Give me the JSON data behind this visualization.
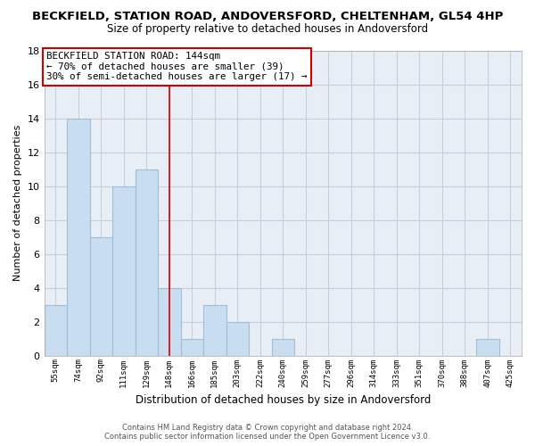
{
  "title": "BECKFIELD, STATION ROAD, ANDOVERSFORD, CHELTENHAM, GL54 4HP",
  "subtitle": "Size of property relative to detached houses in Andoversford",
  "xlabel": "Distribution of detached houses by size in Andoversford",
  "ylabel": "Number of detached properties",
  "bar_color": "#c8ddf0",
  "bar_edge_color": "#a0bcd8",
  "categories": [
    "55sqm",
    "74sqm",
    "92sqm",
    "111sqm",
    "129sqm",
    "148sqm",
    "166sqm",
    "185sqm",
    "203sqm",
    "222sqm",
    "240sqm",
    "259sqm",
    "277sqm",
    "296sqm",
    "314sqm",
    "333sqm",
    "351sqm",
    "370sqm",
    "388sqm",
    "407sqm",
    "425sqm"
  ],
  "values": [
    3,
    14,
    7,
    10,
    11,
    4,
    1,
    3,
    2,
    0,
    1,
    0,
    0,
    0,
    0,
    0,
    0,
    0,
    0,
    1,
    0
  ],
  "ylim": [
    0,
    18
  ],
  "yticks": [
    0,
    2,
    4,
    6,
    8,
    10,
    12,
    14,
    16,
    18
  ],
  "vline_x": 5,
  "vline_color": "#cc0000",
  "annotation_title": "BECKFIELD STATION ROAD: 144sqm",
  "annotation_line1": "← 70% of detached houses are smaller (39)",
  "annotation_line2": "30% of semi-detached houses are larger (17) →",
  "footer_line1": "Contains HM Land Registry data © Crown copyright and database right 2024.",
  "footer_line2": "Contains public sector information licensed under the Open Government Licence v3.0.",
  "bg_color": "#ffffff",
  "plot_bg_color": "#e8eef5",
  "grid_color": "#c5d0dc"
}
